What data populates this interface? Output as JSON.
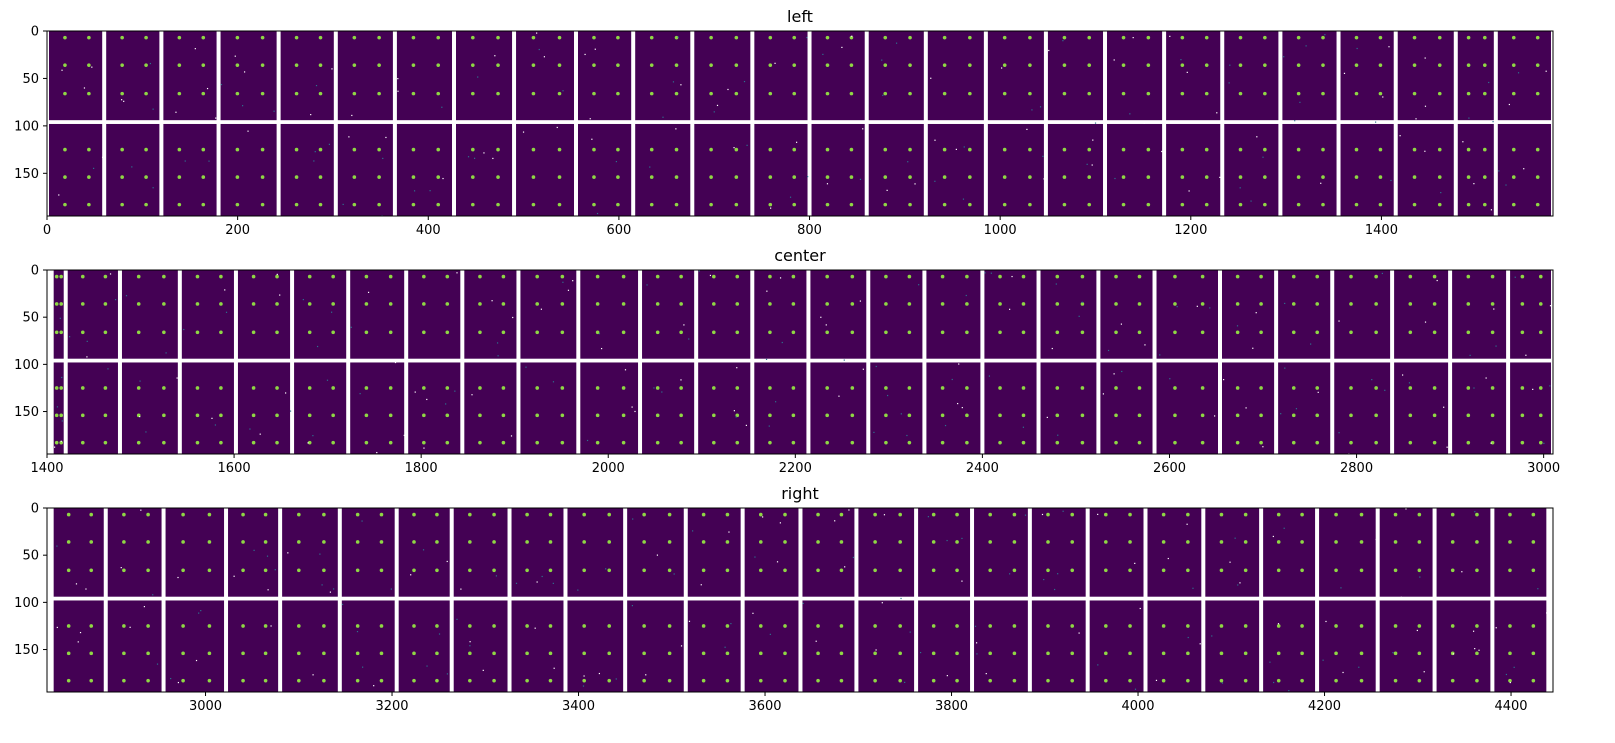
{
  "chart_data": [
    {
      "type": "heatmap",
      "title": "left",
      "xlim": [
        0,
        1580
      ],
      "ylim": [
        195,
        0
      ],
      "xticks": [
        0,
        200,
        400,
        600,
        800,
        1000,
        1200,
        1400
      ],
      "yticks": [
        0,
        50,
        100,
        150
      ],
      "gap_row_y": 96,
      "module_edges": [
        0,
        60,
        120,
        180,
        243,
        303,
        365,
        427,
        490,
        555,
        615,
        677,
        740,
        800,
        860,
        922,
        985,
        1048,
        1110,
        1172,
        1233,
        1294,
        1355,
        1415,
        1478,
        1520,
        1580
      ]
    },
    {
      "type": "heatmap",
      "title": "center",
      "xlim": [
        1400,
        3010
      ],
      "ylim": [
        195,
        0
      ],
      "xticks": [
        1400,
        1600,
        1800,
        2000,
        2200,
        2400,
        2600,
        2800,
        3000
      ],
      "yticks": [
        0,
        50,
        100,
        150
      ],
      "gap_row_y": 96,
      "module_edges": [
        1405,
        1420,
        1478,
        1542,
        1602,
        1662,
        1722,
        1784,
        1844,
        1904,
        1968,
        2034,
        2094,
        2154,
        2214,
        2278,
        2338,
        2400,
        2460,
        2524,
        2584,
        2654,
        2714,
        2774,
        2838,
        2900,
        2962,
        3010
      ]
    },
    {
      "type": "heatmap",
      "title": "right",
      "xlim": [
        2830,
        4445
      ],
      "ylim": [
        195,
        0
      ],
      "xticks": [
        3000,
        3200,
        3400,
        3600,
        3800,
        4000,
        4200,
        4400
      ],
      "yticks": [
        0,
        50,
        100,
        150
      ],
      "gap_row_y": 96,
      "module_edges": [
        2835,
        2893,
        2955,
        3022,
        3080,
        3144,
        3205,
        3264,
        3326,
        3386,
        3450,
        3515,
        3576,
        3638,
        3698,
        3762,
        3822,
        3884,
        3946,
        4008,
        4070,
        4132,
        4192,
        4257,
        4318,
        4380,
        4440
      ]
    }
  ],
  "colors": {
    "background": "#440154",
    "grid_gap": "#ffffff",
    "spot": "#8fd744",
    "noise": "#2c728e"
  }
}
